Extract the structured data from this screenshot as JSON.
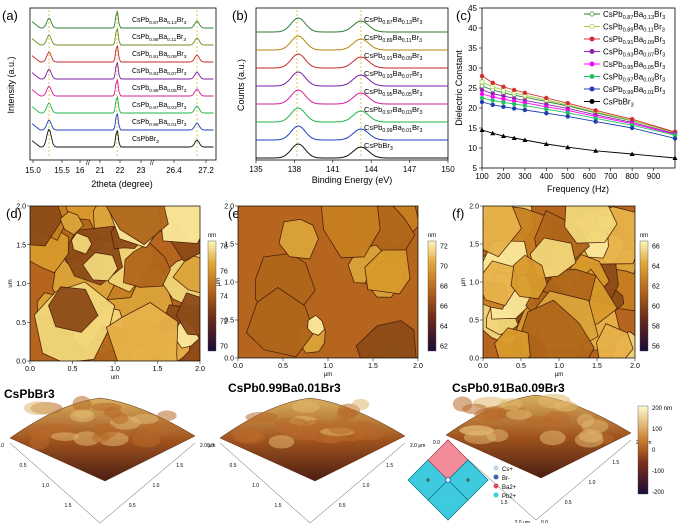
{
  "panel_labels": {
    "a": "(a)",
    "b": "(b)",
    "c": "(c)",
    "d": "(d)",
    "e": "(e)",
    "f": "(f)"
  },
  "panel_a": {
    "ylabel": "Intensity (a.u.)",
    "xlabel": "2theta (degree)",
    "xticks": [
      "15.0",
      "15.5",
      "16",
      "21",
      "22",
      "23",
      "26.4",
      "27.2"
    ],
    "series_labels": [
      "CsPb0.87Ba0.13Br3",
      "CsPb0.89Ba0.11Br3",
      "CsPb0.91Ba0.09Br3",
      "CsPb0.93Ba0.07Br3",
      "CsPb0.95Ba0.05Br3",
      "CsPb0.97Ba0.03Br3",
      "CsPb0.99Ba0.01Br3",
      "CsPbBr3"
    ],
    "series_colors": [
      "#2e7d32",
      "#6b8e23",
      "#c62828",
      "#7b1fa2",
      "#d81b9f",
      "#21b34a",
      "#1f3fbf",
      "#111111"
    ]
  },
  "panel_b": {
    "ylabel": "Counts (a.u.)",
    "xlabel": "Binding Energy (eV)",
    "xticks": [
      "135",
      "138",
      "141",
      "144",
      "147",
      "150"
    ],
    "series_labels": [
      "CsPb0.87Ba0.13Br3",
      "CsPb0.89Ba0.11Br3",
      "CsPb0.91Ba0.09Br3",
      "CsPb0.93Ba0.07Br3",
      "CsPb0.95Ba0.05Br3",
      "CsPb0.97Ba0.03Br3",
      "CsPb0.99Ba0.01Br3",
      "CsPbBr3"
    ],
    "series_colors": [
      "#2e7d32",
      "#b8860b",
      "#c62828",
      "#7b1fa2",
      "#d81b9f",
      "#21b34a",
      "#1f3fbf",
      "#111111"
    ]
  },
  "panel_c": {
    "ylabel": "Dielectric Constant",
    "xlabel": "Frequency (Hz)",
    "xticks": [
      "100",
      "200",
      "300",
      "400",
      "500",
      "600",
      "700",
      "800",
      "900"
    ],
    "yticks": [
      "5",
      "10",
      "15",
      "20",
      "25",
      "30",
      "35",
      "40",
      "45"
    ]
  },
  "chart_data": {
    "type": "line",
    "title": "",
    "xlabel": "Frequency (Hz)",
    "ylabel": "Dielectric Constant",
    "xlim": [
      100,
      1000
    ],
    "ylim": [
      5,
      45
    ],
    "legend_position": "top-right",
    "x": [
      100,
      150,
      200,
      250,
      300,
      400,
      500,
      630,
      800,
      1000
    ],
    "series": [
      {
        "name": "CsPb0.87Ba0.13Br3",
        "color": "#2e7d32",
        "marker": "open-circle",
        "values": [
          25.5,
          24.5,
          23.8,
          23.2,
          22.7,
          21.6,
          20.5,
          18.8,
          16.8,
          14.0
        ]
      },
      {
        "name": "CsPb0.89Ba0.11Br3",
        "color": "#9acd32",
        "marker": "open-square",
        "values": [
          26.5,
          25.3,
          24.5,
          23.8,
          23.2,
          22.0,
          20.8,
          19.0,
          16.9,
          13.8
        ]
      },
      {
        "name": "CsPb0.91Ba0.09Br3",
        "color": "#d32f2f",
        "marker": "circle",
        "values": [
          28.0,
          26.3,
          25.3,
          24.5,
          23.8,
          22.5,
          21.2,
          19.4,
          17.2,
          14.0
        ]
      },
      {
        "name": "CsPb0.93Ba0.07Br3",
        "color": "#8e24aa",
        "marker": "triangle-left",
        "values": [
          24.5,
          23.6,
          23.0,
          22.4,
          21.9,
          20.9,
          19.9,
          18.3,
          16.4,
          13.6
        ]
      },
      {
        "name": "CsPb0.95Ba0.05Br3",
        "color": "#ff00ff",
        "marker": "triangle-right",
        "values": [
          23.5,
          22.8,
          22.2,
          21.7,
          21.3,
          20.3,
          19.4,
          17.9,
          16.1,
          13.4
        ]
      },
      {
        "name": "CsPb0.97Ba0.03Br3",
        "color": "#22c55e",
        "marker": "star",
        "values": [
          22.5,
          21.9,
          21.4,
          21.0,
          20.6,
          19.7,
          18.8,
          17.4,
          15.7,
          13.2
        ]
      },
      {
        "name": "CsPb0.99Ba0.01Br3",
        "color": "#1e40af",
        "marker": "half-circle",
        "values": [
          21.5,
          20.8,
          20.3,
          19.9,
          19.5,
          18.7,
          17.9,
          16.6,
          15.0,
          12.4
        ]
      },
      {
        "name": "CsPbBr3",
        "color": "#000000",
        "marker": "triangle",
        "values": [
          14.5,
          13.7,
          13.0,
          12.5,
          12.0,
          11.0,
          10.2,
          9.3,
          8.5,
          7.5
        ]
      }
    ]
  },
  "afm_d": {
    "xlabel": "um",
    "ylabel": "um",
    "xticks": [
      "0.0",
      "0.5",
      "1.0",
      "1.5",
      "2.0"
    ],
    "yticks": [
      "0.0",
      "0.5",
      "1.0",
      "1.5",
      "2.0"
    ],
    "cbar_unit": "nm",
    "cbar_ticks": [
      "78",
      "76",
      "74",
      "72",
      "70"
    ]
  },
  "afm_e": {
    "xlabel": "μm",
    "ylabel": "μm",
    "xticks": [
      "0.0",
      "0.5",
      "1.0",
      "1.5",
      "2.0"
    ],
    "yticks": [
      "0.0",
      "0.5",
      "1.0",
      "1.5",
      "2.0"
    ],
    "cbar_unit": "nm",
    "cbar_ticks": [
      "72",
      "70",
      "68",
      "66",
      "64",
      "62"
    ]
  },
  "afm_f": {
    "xlabel": "μm",
    "ylabel": "μm",
    "xticks": [
      "0.0",
      "0.5",
      "1.0",
      "1.5",
      "2.0"
    ],
    "yticks": [
      "0.0",
      "0.5",
      "1.0",
      "1.5",
      "2.0"
    ],
    "cbar_unit": "nm",
    "cbar_ticks": [
      "66",
      "64",
      "62",
      "60",
      "58",
      "56"
    ]
  },
  "sample_titles": {
    "d": "CsPbBr3",
    "e": "CsPb0.99Ba0.01Br3",
    "f": "CsPb0.91Ba0.09Br3"
  },
  "threed": {
    "cbar_ticks": [
      "200 nm",
      "100",
      "0",
      "-100",
      "-200"
    ],
    "axis_ticks": [
      "0.0",
      "0.5",
      "1.0",
      "1.5",
      "2.0 μm"
    ]
  },
  "structure_legend": [
    "Cs+",
    "Br-",
    "Ba2+",
    "Pb2+"
  ]
}
